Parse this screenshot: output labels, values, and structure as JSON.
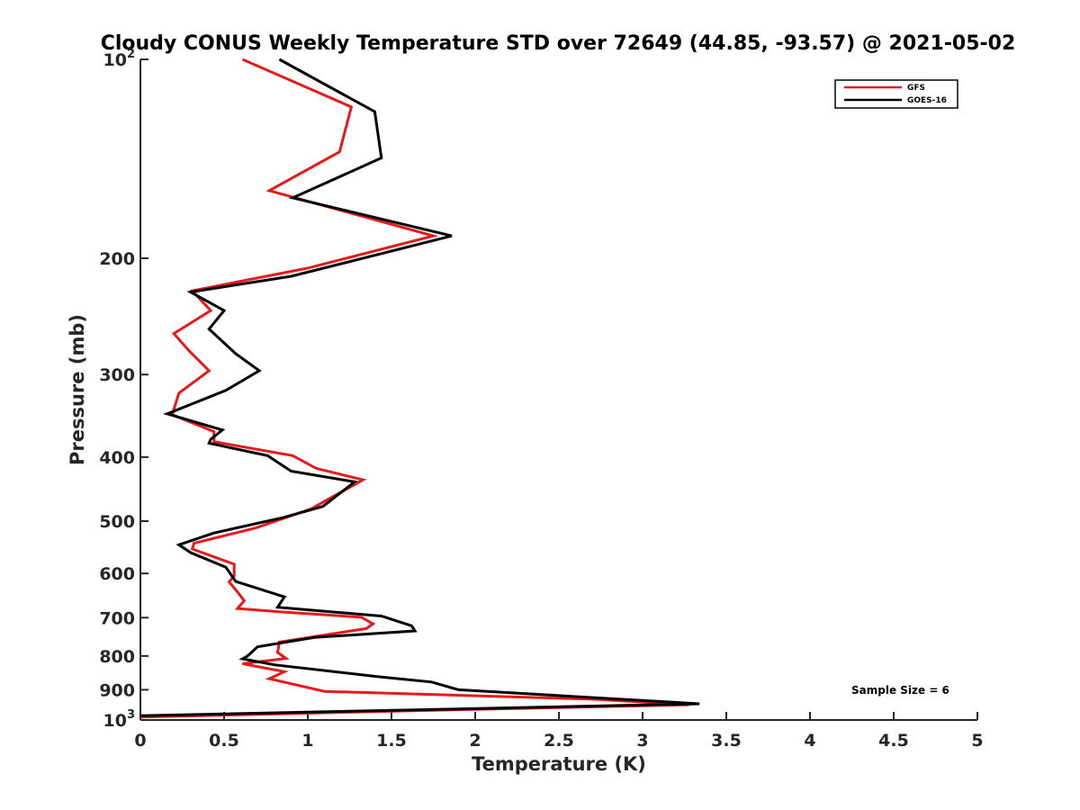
{
  "chart_data": {
    "type": "line",
    "title": "Cloudy CONUS Weekly Temperature STD over 72649 (44.85, -93.57) @ 2021-05-02",
    "xlabel": "Temperature (K)",
    "ylabel": "Pressure (mb)",
    "xlim": [
      0,
      5
    ],
    "ylim": [
      100,
      1000
    ],
    "yscale": "log",
    "y_reversed": true,
    "grid": false,
    "legend_position": "top-right",
    "x_ticks": [
      "0",
      "0.5",
      "1",
      "1.5",
      "2",
      "2.5",
      "3",
      "3.5",
      "4",
      "4.5",
      "5"
    ],
    "y_ticks": [
      {
        "value": 100,
        "label": "10",
        "sup": "2"
      },
      {
        "value": 200,
        "label": "200"
      },
      {
        "value": 300,
        "label": "300"
      },
      {
        "value": 400,
        "label": "400"
      },
      {
        "value": 500,
        "label": "500"
      },
      {
        "value": 600,
        "label": "600"
      },
      {
        "value": 700,
        "label": "700"
      },
      {
        "value": 800,
        "label": "800"
      },
      {
        "value": 900,
        "label": "900"
      },
      {
        "value": 1000,
        "label": "10",
        "sup": "3"
      }
    ],
    "series": [
      {
        "name": "GFS",
        "color": "#e41a1c",
        "points": [
          [
            0.61,
            100
          ],
          [
            1.26,
            118
          ],
          [
            1.19,
            138
          ],
          [
            0.77,
            158
          ],
          [
            1.75,
            185
          ],
          [
            1.0,
            207
          ],
          [
            0.31,
            224
          ],
          [
            0.42,
            240
          ],
          [
            0.2,
            260
          ],
          [
            0.29,
            276
          ],
          [
            0.41,
            296
          ],
          [
            0.23,
            320
          ],
          [
            0.19,
            345
          ],
          [
            0.44,
            366
          ],
          [
            0.44,
            379
          ],
          [
            0.91,
            398
          ],
          [
            1.05,
            416
          ],
          [
            1.33,
            433
          ],
          [
            1.13,
            462
          ],
          [
            1.02,
            479
          ],
          [
            0.69,
            512
          ],
          [
            0.32,
            540
          ],
          [
            0.31,
            551
          ],
          [
            0.56,
            581
          ],
          [
            0.56,
            605
          ],
          [
            0.53,
            618
          ],
          [
            0.58,
            640
          ],
          [
            0.62,
            660
          ],
          [
            0.58,
            678
          ],
          [
            0.84,
            686
          ],
          [
            1.32,
            699
          ],
          [
            1.39,
            715
          ],
          [
            1.35,
            727
          ],
          [
            0.83,
            762
          ],
          [
            0.82,
            790
          ],
          [
            0.87,
            807
          ],
          [
            0.61,
            822
          ],
          [
            0.86,
            845
          ],
          [
            0.77,
            866
          ],
          [
            1.1,
            905
          ],
          [
            2.7,
            930
          ],
          [
            3.28,
            948
          ],
          [
            1.8,
            966
          ],
          [
            0.0,
            990
          ]
        ]
      },
      {
        "name": "GOES-16",
        "color": "#000000",
        "points": [
          [
            0.83,
            100
          ],
          [
            1.4,
            120
          ],
          [
            1.44,
            141
          ],
          [
            0.91,
            162
          ],
          [
            1.86,
            185
          ],
          [
            0.9,
            213
          ],
          [
            0.3,
            225
          ],
          [
            0.5,
            240
          ],
          [
            0.41,
            256
          ],
          [
            0.57,
            279
          ],
          [
            0.71,
            296
          ],
          [
            0.51,
            317
          ],
          [
            0.16,
            344
          ],
          [
            0.49,
            364
          ],
          [
            0.42,
            376
          ],
          [
            0.41,
            381
          ],
          [
            0.76,
            398
          ],
          [
            0.9,
            420
          ],
          [
            1.28,
            436
          ],
          [
            1.09,
            475
          ],
          [
            0.85,
            494
          ],
          [
            0.44,
            521
          ],
          [
            0.23,
            543
          ],
          [
            0.3,
            558
          ],
          [
            0.51,
            587
          ],
          [
            0.57,
            617
          ],
          [
            0.86,
            651
          ],
          [
            0.82,
            675
          ],
          [
            1.44,
            696
          ],
          [
            1.62,
            720
          ],
          [
            1.64,
            733
          ],
          [
            1.04,
            750
          ],
          [
            0.7,
            775
          ],
          [
            0.64,
            800
          ],
          [
            0.61,
            808
          ],
          [
            0.8,
            825
          ],
          [
            1.42,
            860
          ],
          [
            1.74,
            876
          ],
          [
            1.9,
            900
          ],
          [
            3.34,
            945
          ],
          [
            0.0,
            985
          ]
        ]
      }
    ],
    "legend": [
      {
        "label": "GFS",
        "color": "#e41a1c"
      },
      {
        "label": "GOES-16",
        "color": "#000000"
      }
    ],
    "annotation": "Sample Size = 6"
  }
}
